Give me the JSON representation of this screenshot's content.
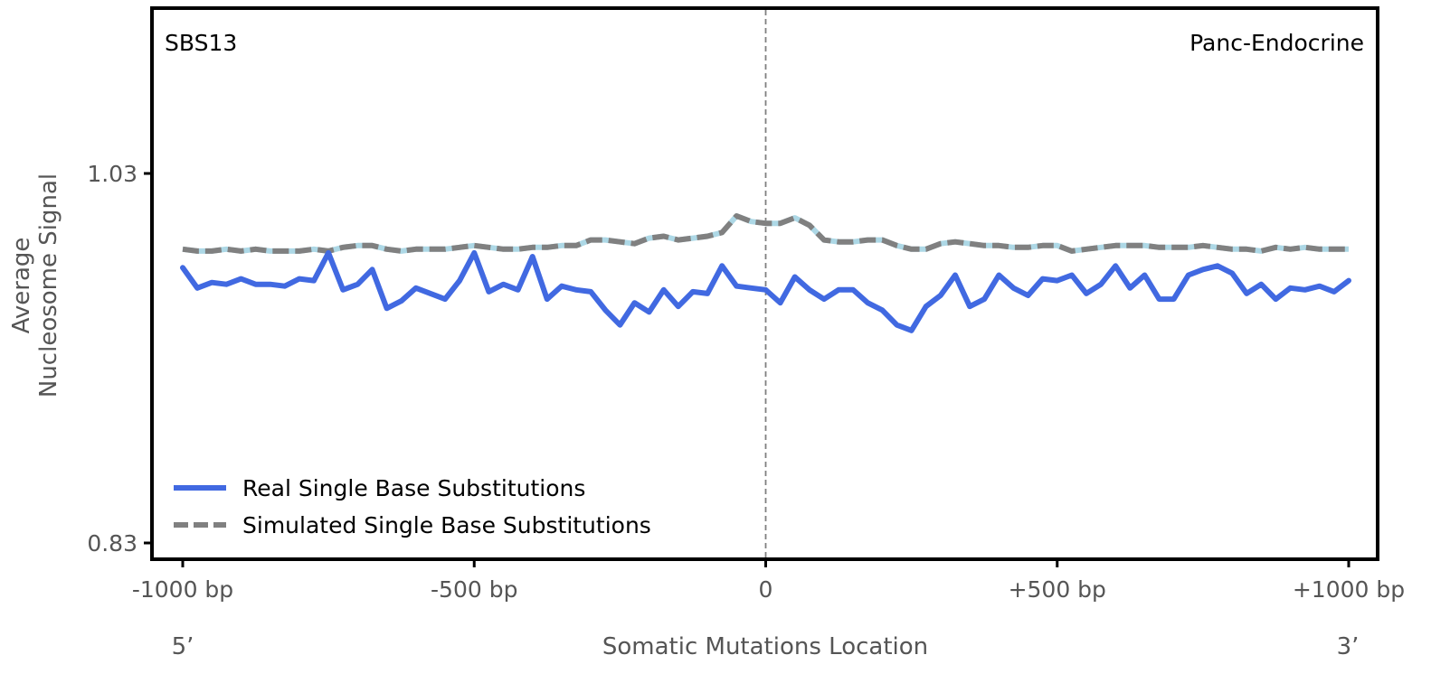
{
  "chart_data": {
    "type": "line",
    "panel_label": "SBS13",
    "tissue_label": "Panc-Endocrine",
    "xlabel": "Somatic Mutations Location",
    "ylabel_lines": [
      "Average",
      "Nucleosome Signal"
    ],
    "x_range": [
      -1000,
      1000
    ],
    "ylim": [
      0.83,
      1.03
    ],
    "x_tick_values": [
      -1000,
      -500,
      0,
      500,
      1000
    ],
    "x_tick_labels": [
      "-1000 bp",
      "-500 bp",
      "0",
      "+500 bp",
      "+1000 bp"
    ],
    "y_tick_values": [
      0.83,
      1.03
    ],
    "y_tick_labels": [
      "0.83",
      "1.03"
    ],
    "end_labels": {
      "left": "5’",
      "right": "3’"
    },
    "center_line_x": 0,
    "legend_position": "lower-left",
    "series": [
      {
        "name": "Real Single Base Substitutions",
        "style": "solid",
        "color": "#4169E1",
        "x": [
          -1000,
          -975,
          -950,
          -925,
          -900,
          -875,
          -850,
          -825,
          -800,
          -775,
          -750,
          -725,
          -700,
          -675,
          -650,
          -625,
          -600,
          -575,
          -550,
          -525,
          -500,
          -475,
          -450,
          -425,
          -400,
          -375,
          -350,
          -325,
          -300,
          -275,
          -250,
          -225,
          -200,
          -175,
          -150,
          -125,
          -100,
          -75,
          -50,
          -25,
          0,
          25,
          50,
          75,
          100,
          125,
          150,
          175,
          200,
          225,
          250,
          275,
          300,
          325,
          350,
          375,
          400,
          425,
          450,
          475,
          500,
          525,
          550,
          575,
          600,
          625,
          650,
          675,
          700,
          725,
          750,
          775,
          800,
          825,
          850,
          875,
          900,
          925,
          950,
          975,
          1000
        ],
        "values": [
          0.979,
          0.968,
          0.971,
          0.97,
          0.973,
          0.97,
          0.97,
          0.969,
          0.973,
          0.972,
          0.987,
          0.967,
          0.97,
          0.978,
          0.957,
          0.961,
          0.968,
          0.965,
          0.962,
          0.972,
          0.987,
          0.966,
          0.97,
          0.967,
          0.985,
          0.962,
          0.969,
          0.967,
          0.966,
          0.956,
          0.948,
          0.96,
          0.955,
          0.967,
          0.958,
          0.966,
          0.965,
          0.98,
          0.969,
          0.968,
          0.967,
          0.96,
          0.974,
          0.967,
          0.962,
          0.967,
          0.967,
          0.96,
          0.956,
          0.948,
          0.945,
          0.958,
          0.964,
          0.975,
          0.958,
          0.962,
          0.975,
          0.968,
          0.964,
          0.973,
          0.972,
          0.975,
          0.965,
          0.97,
          0.98,
          0.968,
          0.975,
          0.962,
          0.962,
          0.975,
          0.978,
          0.98,
          0.976,
          0.965,
          0.97,
          0.962,
          0.968,
          0.967,
          0.969,
          0.966,
          0.972
        ]
      },
      {
        "name": "Simulated Single Base Substitutions",
        "style": "dashed",
        "color": "#808080",
        "dash_alt_color": "#ADD8E6",
        "x": [
          -1000,
          -975,
          -950,
          -925,
          -900,
          -875,
          -850,
          -825,
          -800,
          -775,
          -750,
          -725,
          -700,
          -675,
          -650,
          -625,
          -600,
          -575,
          -550,
          -525,
          -500,
          -475,
          -450,
          -425,
          -400,
          -375,
          -350,
          -325,
          -300,
          -275,
          -250,
          -225,
          -200,
          -175,
          -150,
          -125,
          -100,
          -75,
          -50,
          -25,
          0,
          25,
          50,
          75,
          100,
          125,
          150,
          175,
          200,
          225,
          250,
          275,
          300,
          325,
          350,
          375,
          400,
          425,
          450,
          475,
          500,
          525,
          550,
          575,
          600,
          625,
          650,
          675,
          700,
          725,
          750,
          775,
          800,
          825,
          850,
          875,
          900,
          925,
          950,
          975,
          1000
        ],
        "values": [
          0.989,
          0.988,
          0.988,
          0.989,
          0.988,
          0.989,
          0.988,
          0.988,
          0.988,
          0.989,
          0.988,
          0.99,
          0.991,
          0.991,
          0.989,
          0.988,
          0.989,
          0.989,
          0.989,
          0.99,
          0.991,
          0.99,
          0.989,
          0.989,
          0.99,
          0.99,
          0.991,
          0.991,
          0.994,
          0.994,
          0.993,
          0.992,
          0.995,
          0.996,
          0.994,
          0.995,
          0.996,
          0.998,
          1.007,
          1.004,
          1.003,
          1.003,
          1.006,
          1.002,
          0.994,
          0.993,
          0.993,
          0.994,
          0.994,
          0.991,
          0.989,
          0.989,
          0.992,
          0.993,
          0.992,
          0.991,
          0.991,
          0.99,
          0.99,
          0.991,
          0.991,
          0.988,
          0.989,
          0.99,
          0.991,
          0.991,
          0.991,
          0.99,
          0.99,
          0.99,
          0.991,
          0.99,
          0.989,
          0.989,
          0.988,
          0.99,
          0.989,
          0.99,
          0.989,
          0.989,
          0.989
        ]
      }
    ]
  }
}
